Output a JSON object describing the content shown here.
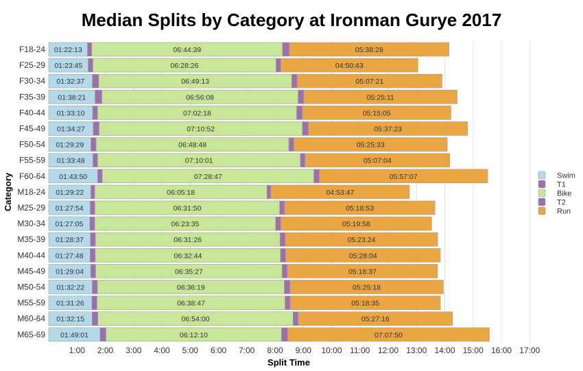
{
  "chart_data": {
    "type": "bar",
    "orientation": "horizontal",
    "stacked": true,
    "title": "Median Splits by Category at Ironman Gurye 2017",
    "xlabel": "Split Time",
    "ylabel": "Category",
    "xlim": [
      "0:00",
      "17:00"
    ],
    "xticks": [
      "1:00",
      "2:00",
      "3:00",
      "4:00",
      "5:00",
      "6:00",
      "7:00",
      "8:00",
      "9:00",
      "10:00",
      "11:00",
      "12:00",
      "13:00",
      "14:00",
      "15:00",
      "16:00",
      "17:00"
    ],
    "grid": true,
    "legend_position": "right",
    "categories": [
      "F18-24",
      "F25-29",
      "F30-34",
      "F35-39",
      "F40-44",
      "F45-49",
      "F50-54",
      "F55-59",
      "F60-64",
      "M18-24",
      "M25-29",
      "M30-34",
      "M35-39",
      "M40-44",
      "M45-49",
      "M50-54",
      "M55-59",
      "M60-64",
      "M65-69"
    ],
    "series": [
      {
        "name": "Swim",
        "color": "#b4d9e9",
        "labeled": true,
        "values": [
          "01:22:13",
          "01:23:45",
          "01:32:37",
          "01:38:21",
          "01:33:10",
          "01:34:27",
          "01:29:29",
          "01:33:48",
          "01:43:50",
          "01:29:22",
          "01:27:54",
          "01:27:05",
          "01:28:37",
          "01:27:48",
          "01:29:04",
          "01:32:22",
          "01:31:26",
          "01:32:15",
          "01:49:01"
        ]
      },
      {
        "name": "T1",
        "color": "#9d6fae",
        "labeled": false,
        "values": [
          "00:09:00",
          "00:10:00",
          "00:13:30",
          "00:14:30",
          "00:10:30",
          "00:12:30",
          "00:11:00",
          "00:10:00",
          "00:09:45",
          "00:08:15",
          "00:10:00",
          "00:10:30",
          "00:10:30",
          "00:11:00",
          "00:10:30",
          "00:11:00",
          "00:11:00",
          "00:12:00",
          "00:12:30"
        ]
      },
      {
        "name": "Bike",
        "color": "#c9e598",
        "labeled": true,
        "values": [
          "06:44:39",
          "06:28:26",
          "06:49:13",
          "06:56:08",
          "07:02:18",
          "07:10:52",
          "06:48:48",
          "07:10:01",
          "07:28:47",
          "06:05:18",
          "06:31:50",
          "06:23:35",
          "06:31:26",
          "06:32:44",
          "06:35:27",
          "06:36:19",
          "06:38:47",
          "06:54:00",
          "06:12:10"
        ]
      },
      {
        "name": "T2",
        "color": "#9d6fae",
        "labeled": false,
        "values": [
          "00:14:30",
          "00:10:00",
          "00:11:30",
          "00:12:00",
          "00:12:00",
          "00:13:00",
          "00:10:30",
          "00:09:45",
          "00:11:30",
          "00:08:15",
          "00:10:30",
          "00:11:00",
          "00:11:00",
          "00:11:00",
          "00:11:00",
          "00:12:00",
          "00:11:00",
          "00:11:00",
          "00:13:00"
        ]
      },
      {
        "name": "Run",
        "color": "#e9a642",
        "labeled": true,
        "values": [
          "05:38:28",
          "04:50:43",
          "05:07:21",
          "05:25:11",
          "05:15:05",
          "05:37:23",
          "05:25:33",
          "05:07:04",
          "05:57:07",
          "04:53:47",
          "05:18:53",
          "05:19:58",
          "05:23:24",
          "05:28:04",
          "05:18:37",
          "05:25:18",
          "05:18:35",
          "05:27:16",
          "07:07:50"
        ]
      }
    ]
  }
}
